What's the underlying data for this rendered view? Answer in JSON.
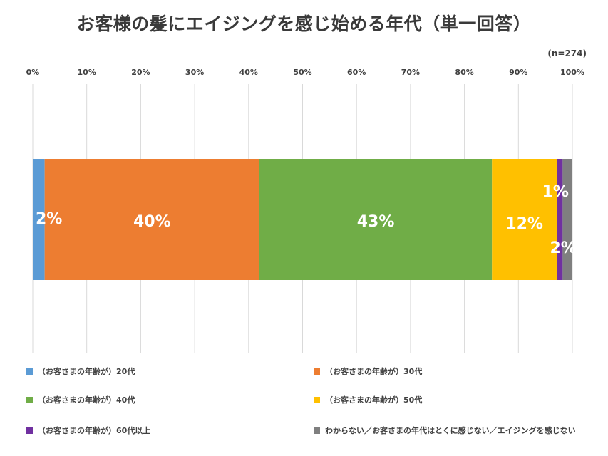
{
  "title": "お客様の髪にエイジングを感じ始める年代（単一回答）",
  "sample_size_label": "(n=274)",
  "chart_data": {
    "type": "bar",
    "orientation": "horizontal",
    "stacked": true,
    "x_ticks": [
      "0%",
      "10%",
      "20%",
      "30%",
      "40%",
      "50%",
      "60%",
      "70%",
      "80%",
      "90%",
      "100%"
    ],
    "xlim": [
      0,
      100
    ],
    "grid": true,
    "legend_position": "bottom",
    "series": [
      {
        "name": "（お客さまの年齢が）20代",
        "value": 2.2,
        "label": "2%",
        "color": "#5b9bd5"
      },
      {
        "name": "（お客さまの年齢が）30代",
        "value": 39.8,
        "label": "40%",
        "color": "#ed7d31"
      },
      {
        "name": "（お客さまの年齢が）40代",
        "value": 43.1,
        "label": "43%",
        "color": "#70ad47"
      },
      {
        "name": "（お客さまの年齢が）50代",
        "value": 12.0,
        "label": "12%",
        "color": "#ffc000"
      },
      {
        "name": "（お客さまの年齢が）60代以上",
        "value": 1.1,
        "label": "1%",
        "color": "#7030a0"
      },
      {
        "name": "わからない／お客さまの年代はとくに感じない／エイジングを感じない",
        "value": 1.8,
        "label": "2%",
        "color": "#7f7f7f"
      }
    ]
  }
}
